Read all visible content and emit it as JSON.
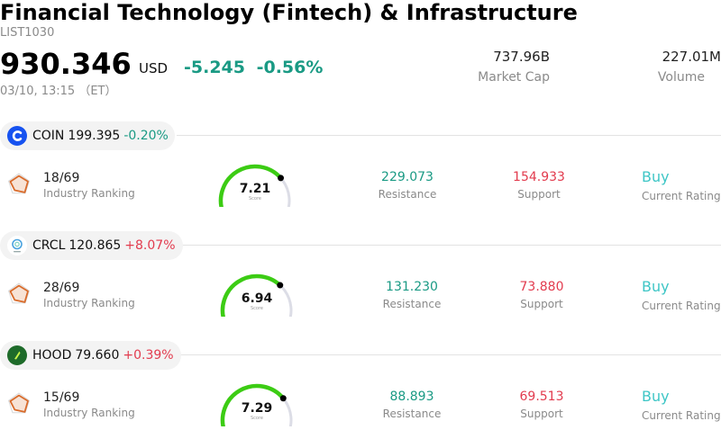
{
  "header": {
    "title": "Financial Technology (Fintech) & Infrastructure",
    "code": "LIST1030",
    "price": "930.346",
    "currency": "USD",
    "change": "-5.245",
    "change_pct": "-0.56%",
    "datetime": "03/10, 13:15 （ET）",
    "market_cap_value": "737.96B",
    "market_cap_label": "Market Cap",
    "volume_value": "227.01M",
    "volume_label": "Volume"
  },
  "stocks": [
    {
      "symbol": "COIN",
      "price": "199.395",
      "change_pct": "-0.20%",
      "direction": "down",
      "logo_icon": "coinbase-logo-icon",
      "logo_color": "#1652f0",
      "rank": "18/69",
      "rank_label": "Industry Ranking",
      "score": "7.21",
      "score_value": 7.21,
      "score_label": "Score",
      "resistance": "229.073",
      "resistance_label": "Resistance",
      "support": "154.933",
      "support_label": "Support",
      "rating": "Buy",
      "rating_label": "Current Rating"
    },
    {
      "symbol": "CRCL",
      "price": "120.865",
      "change_pct": "+8.07%",
      "direction": "up",
      "logo_icon": "circle-logo-icon",
      "logo_color": "#4aa3df",
      "rank": "28/69",
      "rank_label": "Industry Ranking",
      "score": "6.94",
      "score_value": 6.94,
      "score_label": "Score",
      "resistance": "131.230",
      "resistance_label": "Resistance",
      "support": "73.880",
      "support_label": "Support",
      "rating": "Buy",
      "rating_label": "Current Rating"
    },
    {
      "symbol": "HOOD",
      "price": "79.660",
      "change_pct": "+0.39%",
      "direction": "up",
      "logo_icon": "robinhood-logo-icon",
      "logo_color": "#1e6b2a",
      "rank": "15/69",
      "rank_label": "Industry Ranking",
      "score": "7.29",
      "score_value": 7.29,
      "score_label": "Score",
      "resistance": "88.893",
      "resistance_label": "Resistance",
      "support": "69.513",
      "support_label": "Support",
      "rating": "Buy",
      "rating_label": "Current Rating"
    }
  ],
  "colors": {
    "gauge_fill": "#3ccc14",
    "gauge_track": "#dcdde6",
    "resistance": "#1a9a84",
    "support": "#e23b4e",
    "rating": "#3ec6c6"
  }
}
